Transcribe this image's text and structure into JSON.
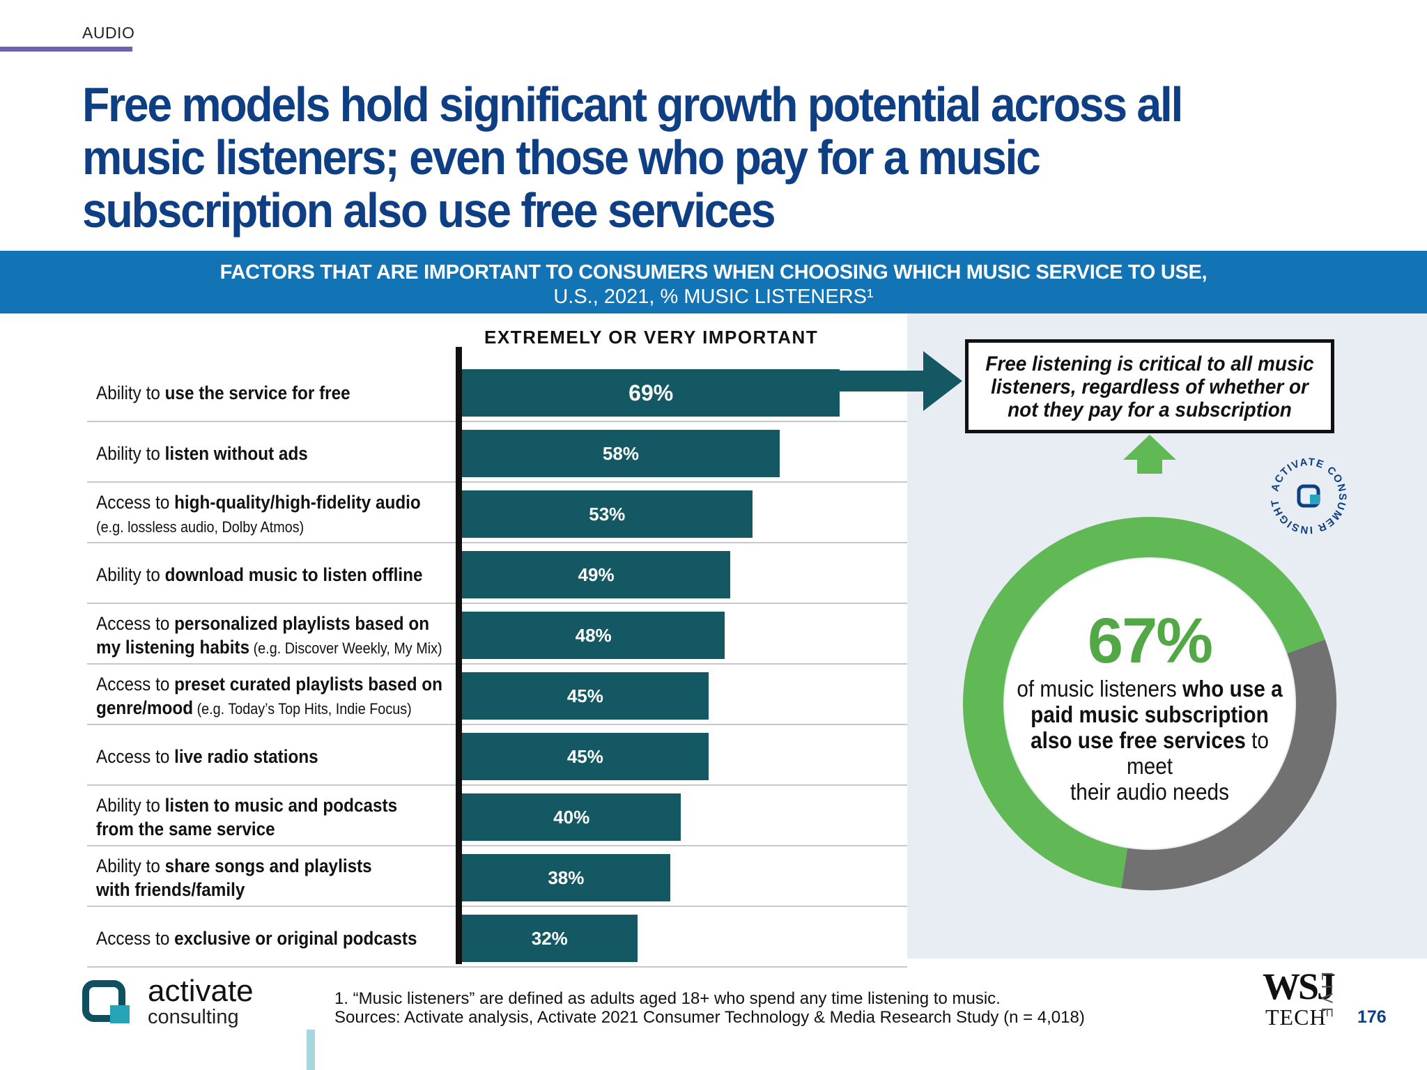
{
  "section": "AUDIO",
  "title": "Free models hold significant growth potential across all music listeners; even those who pay for a music subscription also use free services",
  "banner": {
    "line1": "FACTORS THAT ARE IMPORTANT TO CONSUMERS WHEN CHOOSING WHICH MUSIC SERVICE TO USE,",
    "line2": "U.S., 2021, % MUSIC LISTENERS¹"
  },
  "chart_data": {
    "type": "bar",
    "orientation": "horizontal",
    "column_header": "EXTREMELY OR VERY IMPORTANT",
    "xlim": [
      0,
      100
    ],
    "categories": [
      {
        "prefix": "Ability to",
        "bold": "use the service for free",
        "rest": "",
        "note": "",
        "line2_bold": "",
        "line2_note": ""
      },
      {
        "prefix": "Ability to",
        "bold": "listen without ads",
        "rest": "",
        "note": "",
        "line2_bold": "",
        "line2_note": ""
      },
      {
        "prefix": "Access to",
        "bold": "high-quality/high-fidelity audio",
        "rest": "",
        "note": "(e.g. lossless audio, Dolby Atmos)",
        "line2_bold": "",
        "line2_note": ""
      },
      {
        "prefix": "Ability to",
        "bold": "download music to listen offline",
        "rest": "",
        "note": "",
        "line2_bold": "",
        "line2_note": ""
      },
      {
        "prefix": "Access to",
        "bold": "personalized playlists based on",
        "rest": "",
        "note": "",
        "line2_bold": "my listening habits",
        "line2_note": "(e.g. Discover Weekly, My Mix)"
      },
      {
        "prefix": "Access to",
        "bold": "preset curated playlists based on",
        "rest": "",
        "note": "",
        "line2_bold": "genre/mood",
        "line2_note": "(e.g. Today’s Top Hits, Indie Focus)"
      },
      {
        "prefix": "Access to",
        "bold": "live radio stations",
        "rest": "",
        "note": "",
        "line2_bold": "",
        "line2_note": ""
      },
      {
        "prefix": "Ability to",
        "bold": "listen to music and podcasts",
        "rest": "",
        "note": "",
        "line2_bold": "from the same service",
        "line2_note": ""
      },
      {
        "prefix": "Ability to",
        "bold": "share songs and playlists",
        "rest": "",
        "note": "",
        "line2_bold": "with friends/family",
        "line2_note": ""
      },
      {
        "prefix": "Access to",
        "bold": "exclusive or original podcasts",
        "rest": "",
        "note": "",
        "line2_bold": "",
        "line2_note": ""
      }
    ],
    "values": [
      69,
      58,
      53,
      49,
      48,
      45,
      45,
      40,
      38,
      32
    ],
    "value_labels": [
      "69%",
      "58%",
      "53%",
      "49%",
      "48%",
      "45%",
      "45%",
      "40%",
      "38%",
      "32%"
    ],
    "donut": {
      "values": [
        67,
        33
      ],
      "colors": [
        "#61b956",
        "#717171"
      ],
      "label": "67%"
    }
  },
  "callout": {
    "line1": "Free listening is critical to all music",
    "line2": "listeners, regardless of whether or",
    "line3": "not they pay for a subscription"
  },
  "donut_text": {
    "pre1": "of music listeners",
    "bold1": "who use a",
    "bold2": "paid music subscription",
    "bold3": "also use free services",
    "post3": "to meet",
    "line4": "their audio needs"
  },
  "badge": {
    "text": "ACTIVATE CONSUMER INSIGHT"
  },
  "logo": {
    "name": "activate",
    "sub": "consulting"
  },
  "footnote": {
    "line1": "1. “Music listeners” are defined as adults aged 18+ who spend any time listening to music.",
    "line2": "Sources: Activate analysis, Activate 2021 Consumer Technology & Media Research Study (n = 4,018)"
  },
  "brand": {
    "wsj": "WSJ",
    "tech": "TECH",
    "live": "LIVE"
  },
  "page_number": "176",
  "colors": {
    "title": "#0e3f85",
    "banner": "#1273b5",
    "bar": "#135862",
    "panel": "#e7edf3",
    "green": "#61b956",
    "gray": "#717171",
    "accent_rule": "#6b63b1"
  }
}
